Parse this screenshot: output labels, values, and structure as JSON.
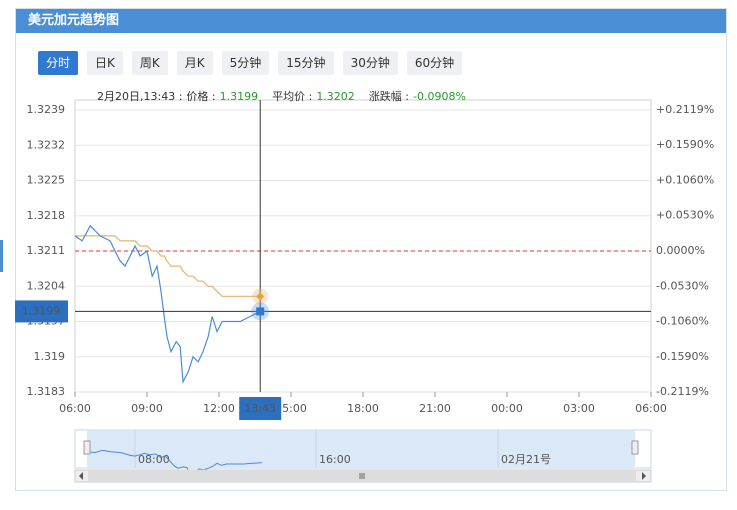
{
  "header": {
    "title": "美元加元趋势图"
  },
  "tabs": {
    "items": [
      "分时",
      "日K",
      "周K",
      "月K",
      "5分钟",
      "15分钟",
      "30分钟",
      "60分钟"
    ],
    "active": 0
  },
  "info": {
    "date_time": "2月20日,13:43 :",
    "price_label": "价格 :",
    "price": 1.3199,
    "avg_label": "平均价 :",
    "avg": 1.3202,
    "change_label": "涨跌幅 :",
    "change": {
      "value": -0.0908,
      "label": "-0.0908%"
    }
  },
  "crosshair": {
    "time": "13:43",
    "price": 1.3199
  },
  "navigator": {
    "labels": [
      "08:00",
      "16:00",
      "02月21号"
    ]
  },
  "chart_data": {
    "type": "line",
    "x": [
      0,
      18,
      38,
      63,
      88,
      100,
      113,
      125,
      138,
      150,
      163,
      180,
      193,
      205,
      215,
      223,
      230,
      240,
      253,
      263,
      270,
      283,
      295,
      308,
      320,
      333,
      343,
      355,
      368,
      388,
      413,
      438,
      463
    ],
    "series": [
      {
        "name": "价格",
        "color": "#4a8bd6",
        "values": [
          1.3214,
          1.3213,
          1.3216,
          1.3214,
          1.3213,
          1.3211,
          1.3209,
          1.3208,
          1.321,
          1.3212,
          1.321,
          1.3211,
          1.3206,
          1.3208,
          1.3203,
          1.3198,
          1.3194,
          1.3191,
          1.3193,
          1.3192,
          1.3185,
          1.3187,
          1.319,
          1.3189,
          1.3191,
          1.3194,
          1.3198,
          1.3195,
          1.3197,
          1.3197,
          1.3197,
          1.3198,
          1.3199
        ]
      },
      {
        "name": "平均价",
        "color": "#e5b46a",
        "values": [
          1.3214,
          1.3214,
          1.3214,
          1.3214,
          1.3214,
          1.3214,
          1.3213,
          1.3213,
          1.3213,
          1.3213,
          1.3212,
          1.3212,
          1.3211,
          1.3211,
          1.321,
          1.321,
          1.3209,
          1.3208,
          1.3208,
          1.3208,
          1.3207,
          1.3206,
          1.3206,
          1.3205,
          1.3205,
          1.3204,
          1.3204,
          1.3203,
          1.3202,
          1.3202,
          1.3202,
          1.3202,
          1.3202
        ]
      }
    ],
    "xlim": [
      0,
      1440
    ],
    "xticks": [
      {
        "value": 0,
        "label": "06:00"
      },
      {
        "value": 180,
        "label": "09:00"
      },
      {
        "value": 360,
        "label": "12:00"
      },
      {
        "value": 540,
        "label": "15:00"
      },
      {
        "value": 720,
        "label": "18:00"
      },
      {
        "value": 900,
        "label": "21:00"
      },
      {
        "value": 1080,
        "label": "00:00"
      },
      {
        "value": 1260,
        "label": "03:00"
      },
      {
        "value": 1440,
        "label": "06:00"
      }
    ],
    "ylim": [
      1.3183,
      1.3239
    ],
    "yticks": [
      1.3239,
      1.3232,
      1.3225,
      1.3218,
      1.3211,
      1.3204,
      1.3197,
      1.319,
      1.3183
    ],
    "y2lim": [
      -0.2119,
      0.2119
    ],
    "y2ticks": [
      {
        "value": 0.2119,
        "label": "+0.2119%"
      },
      {
        "value": 0.159,
        "label": "+0.1590%"
      },
      {
        "value": 0.106,
        "label": "+0.1060%"
      },
      {
        "value": 0.053,
        "label": "+0.0530%"
      },
      {
        "value": 0,
        "label": "0.0000%"
      },
      {
        "value": -0.053,
        "label": "-0.0530%"
      },
      {
        "value": -0.106,
        "label": "-0.1060%"
      },
      {
        "value": -0.159,
        "label": "-0.1590%"
      },
      {
        "value": -0.2119,
        "label": "-0.2119%"
      }
    ],
    "grid": true
  }
}
